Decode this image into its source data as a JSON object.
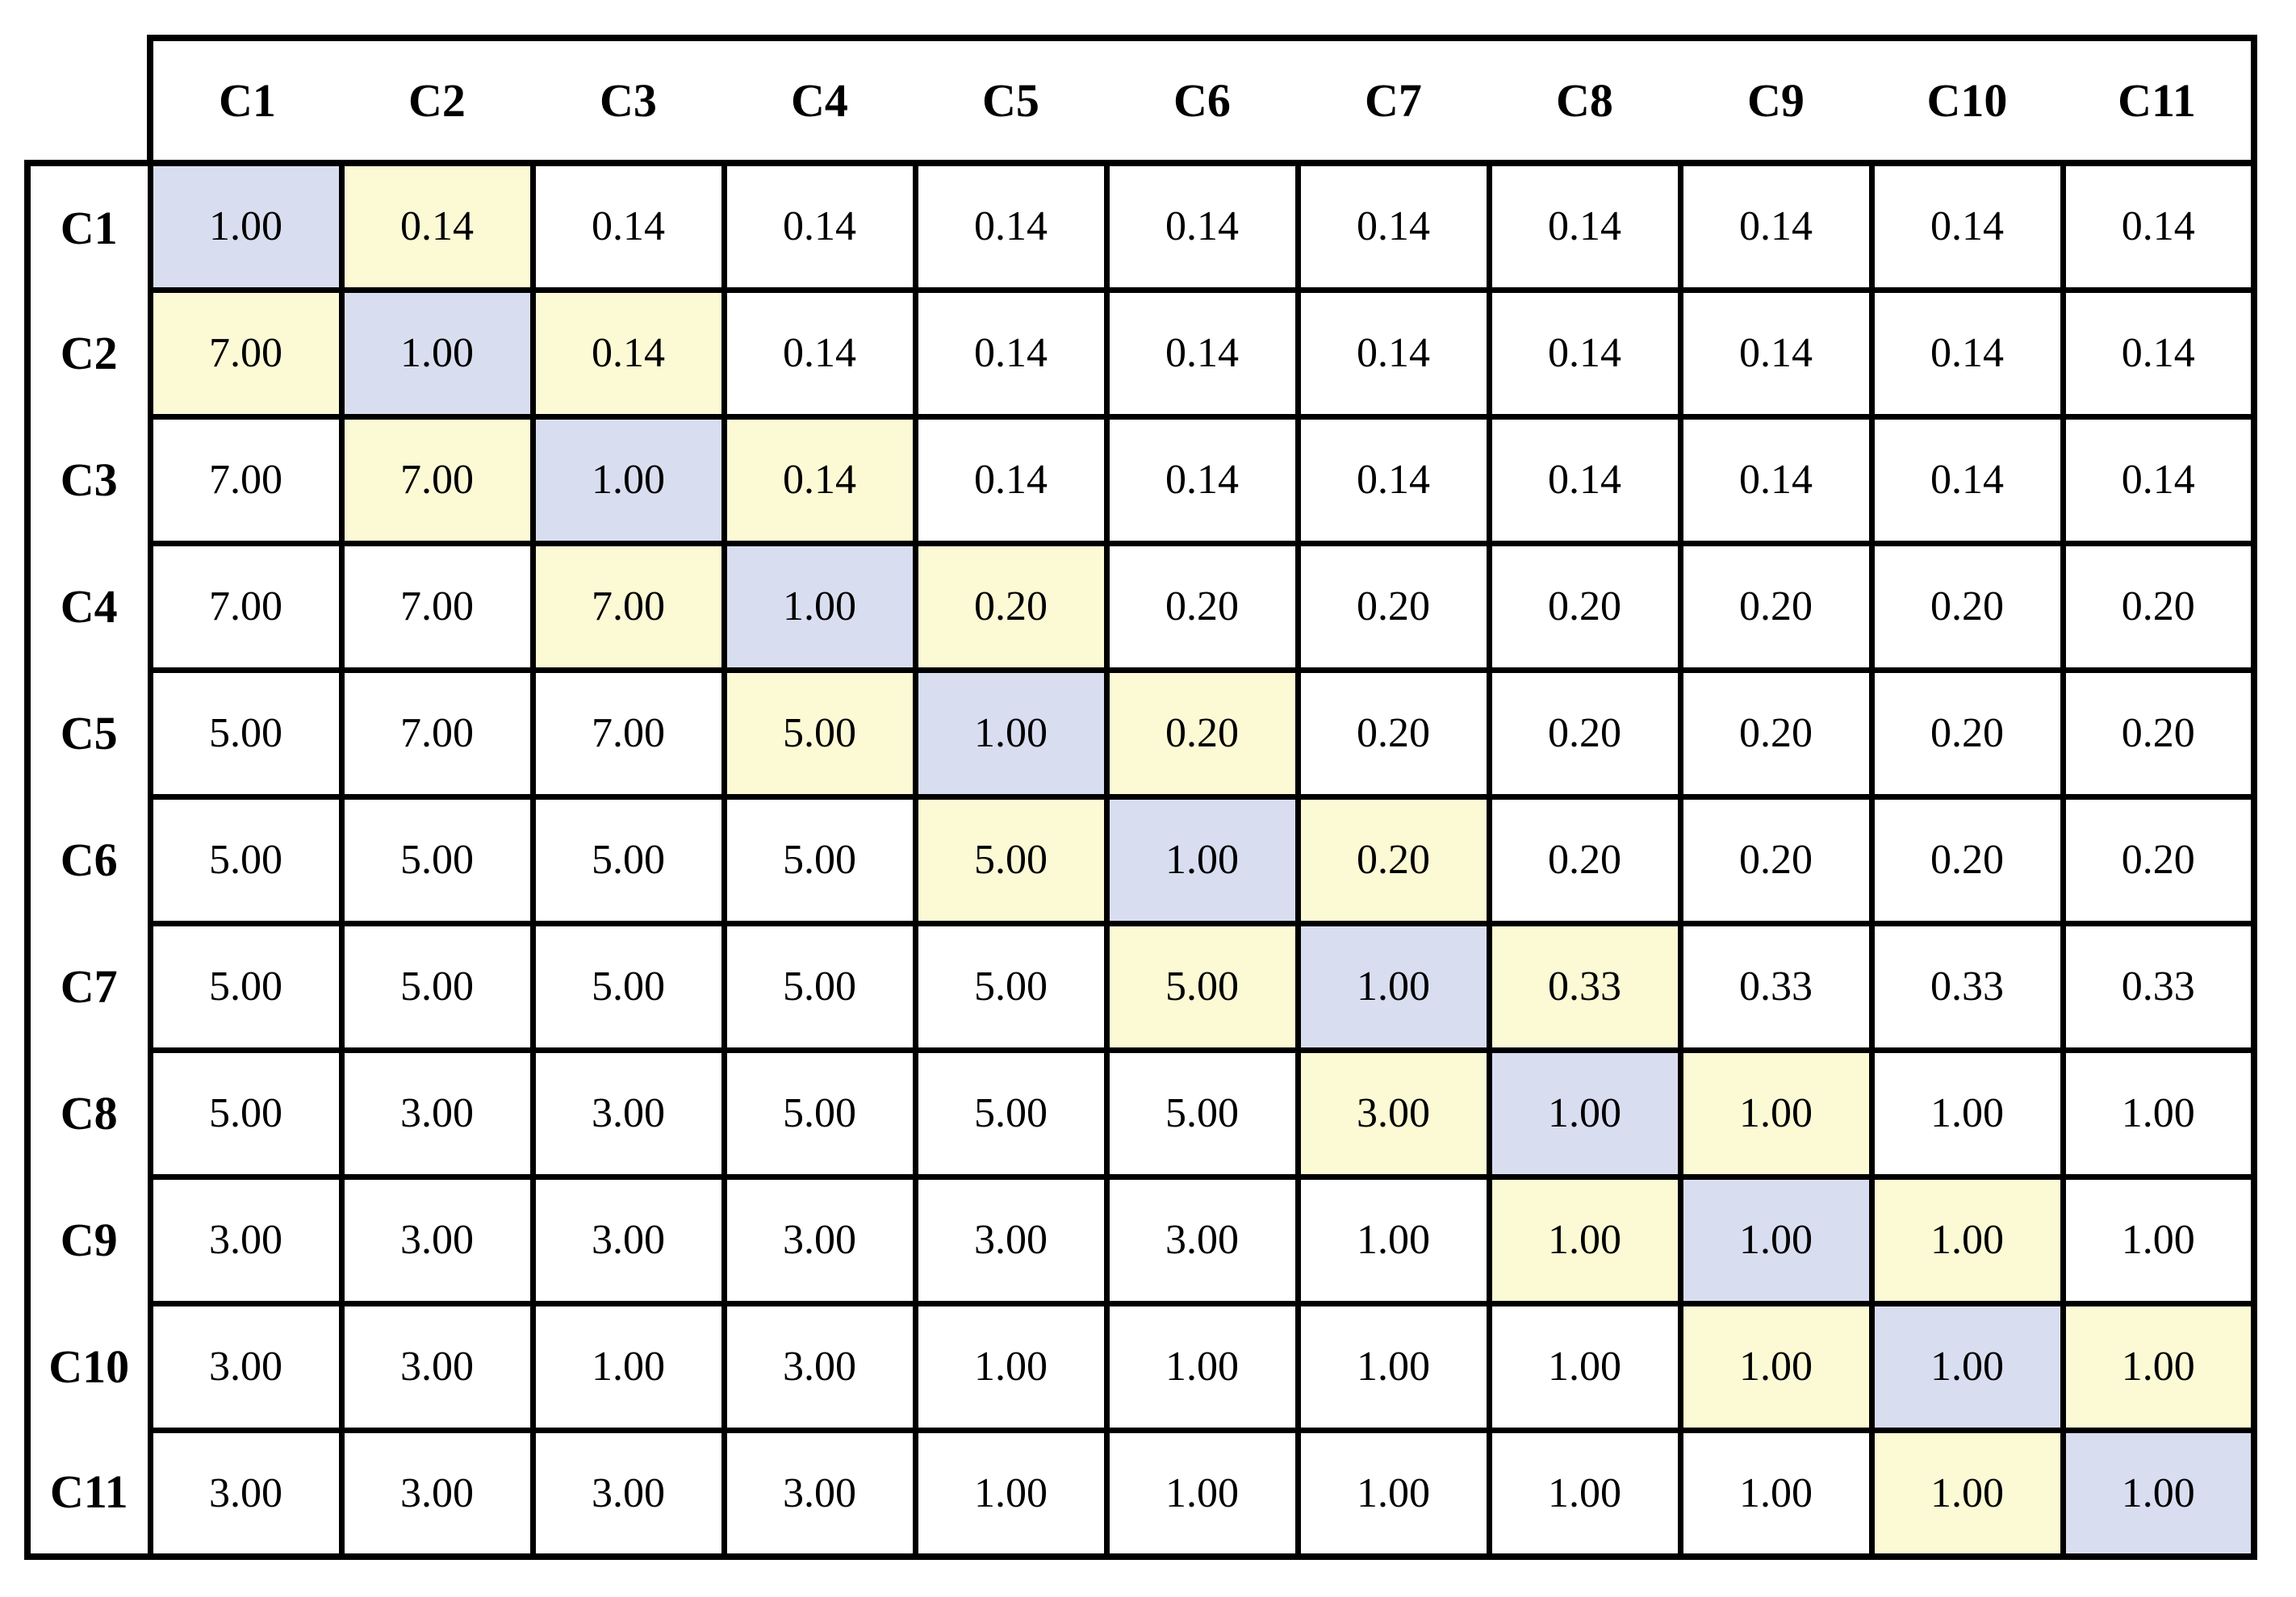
{
  "chart_data": {
    "type": "table",
    "column_headers": [
      "C1",
      "C2",
      "C3",
      "C4",
      "C5",
      "C6",
      "C7",
      "C8",
      "C9",
      "C10",
      "C11"
    ],
    "rows": [
      {
        "label": "C1",
        "values": [
          "1.00",
          "0.14",
          "0.14",
          "0.14",
          "0.14",
          "0.14",
          "0.14",
          "0.14",
          "0.14",
          "0.14",
          "0.14"
        ]
      },
      {
        "label": "C2",
        "values": [
          "7.00",
          "1.00",
          "0.14",
          "0.14",
          "0.14",
          "0.14",
          "0.14",
          "0.14",
          "0.14",
          "0.14",
          "0.14"
        ]
      },
      {
        "label": "C3",
        "values": [
          "7.00",
          "7.00",
          "1.00",
          "0.14",
          "0.14",
          "0.14",
          "0.14",
          "0.14",
          "0.14",
          "0.14",
          "0.14"
        ]
      },
      {
        "label": "C4",
        "values": [
          "7.00",
          "7.00",
          "7.00",
          "1.00",
          "0.20",
          "0.20",
          "0.20",
          "0.20",
          "0.20",
          "0.20",
          "0.20"
        ]
      },
      {
        "label": "C5",
        "values": [
          "5.00",
          "7.00",
          "7.00",
          "5.00",
          "1.00",
          "0.20",
          "0.20",
          "0.20",
          "0.20",
          "0.20",
          "0.20"
        ]
      },
      {
        "label": "C6",
        "values": [
          "5.00",
          "5.00",
          "5.00",
          "5.00",
          "5.00",
          "1.00",
          "0.20",
          "0.20",
          "0.20",
          "0.20",
          "0.20"
        ]
      },
      {
        "label": "C7",
        "values": [
          "5.00",
          "5.00",
          "5.00",
          "5.00",
          "5.00",
          "5.00",
          "1.00",
          "0.33",
          "0.33",
          "0.33",
          "0.33"
        ]
      },
      {
        "label": "C8",
        "values": [
          "5.00",
          "3.00",
          "3.00",
          "5.00",
          "5.00",
          "5.00",
          "3.00",
          "1.00",
          "1.00",
          "1.00",
          "1.00"
        ]
      },
      {
        "label": "C9",
        "values": [
          "3.00",
          "3.00",
          "3.00",
          "3.00",
          "3.00",
          "3.00",
          "1.00",
          "1.00",
          "1.00",
          "1.00",
          "1.00"
        ]
      },
      {
        "label": "C10",
        "values": [
          "3.00",
          "3.00",
          "1.00",
          "3.00",
          "1.00",
          "1.00",
          "1.00",
          "1.00",
          "1.00",
          "1.00",
          "1.00"
        ]
      },
      {
        "label": "C11",
        "values": [
          "3.00",
          "3.00",
          "3.00",
          "3.00",
          "1.00",
          "1.00",
          "1.00",
          "1.00",
          "1.00",
          "1.00",
          "1.00"
        ]
      }
    ],
    "colors": {
      "diagonal_bg": "#D8DDF0",
      "neighbor_bg": "#FCFAD4",
      "grid_line": "#000000",
      "background": "#FFFFFF"
    },
    "layout_hints": {
      "diagonal_highlight": "cells where row index equals column index",
      "neighbor_highlight": "cells immediately left/right of the diagonal"
    }
  }
}
